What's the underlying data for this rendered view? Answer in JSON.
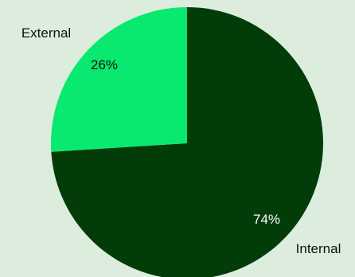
{
  "chart_data": {
    "type": "pie",
    "title": "",
    "slices": [
      {
        "label": "Internal",
        "value": 74,
        "display": "74%",
        "color": "#023d09"
      },
      {
        "label": "External",
        "value": 26,
        "display": "26%",
        "color": "#09e96f"
      }
    ],
    "start_angle_deg": 0,
    "direction": "clockwise",
    "legend": "none",
    "label_style": "category-outside-percent-inside"
  },
  "colors": {
    "background": "#dcedde",
    "label_text": "#111111",
    "percent_on_dark": "#ffffff",
    "percent_on_light": "#111111"
  }
}
